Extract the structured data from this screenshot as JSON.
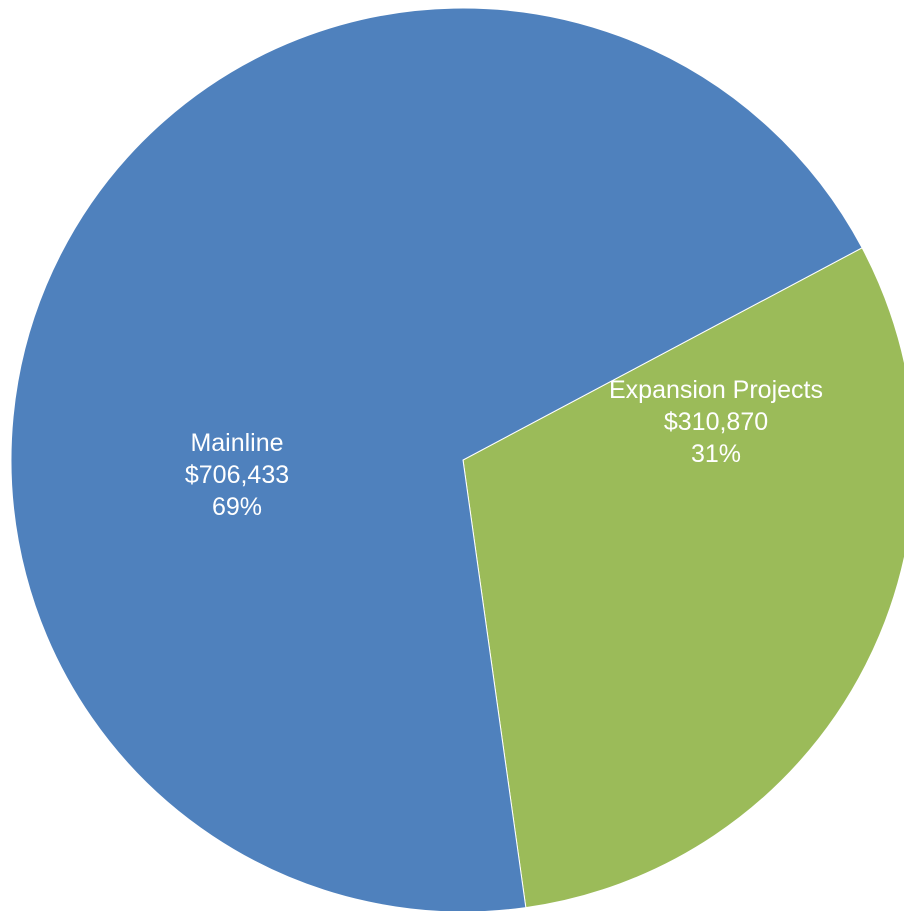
{
  "chart_data": {
    "type": "pie",
    "title": "",
    "slices": [
      {
        "label": "Expansion Projects",
        "value": 310870,
        "value_text": "$310,870",
        "percent_text": "31%",
        "color": "#9BBB59"
      },
      {
        "label": "Mainline",
        "value": 706433,
        "value_text": "$706,433",
        "percent_text": "69%",
        "color": "#4F81BD"
      }
    ],
    "legend": "none"
  }
}
